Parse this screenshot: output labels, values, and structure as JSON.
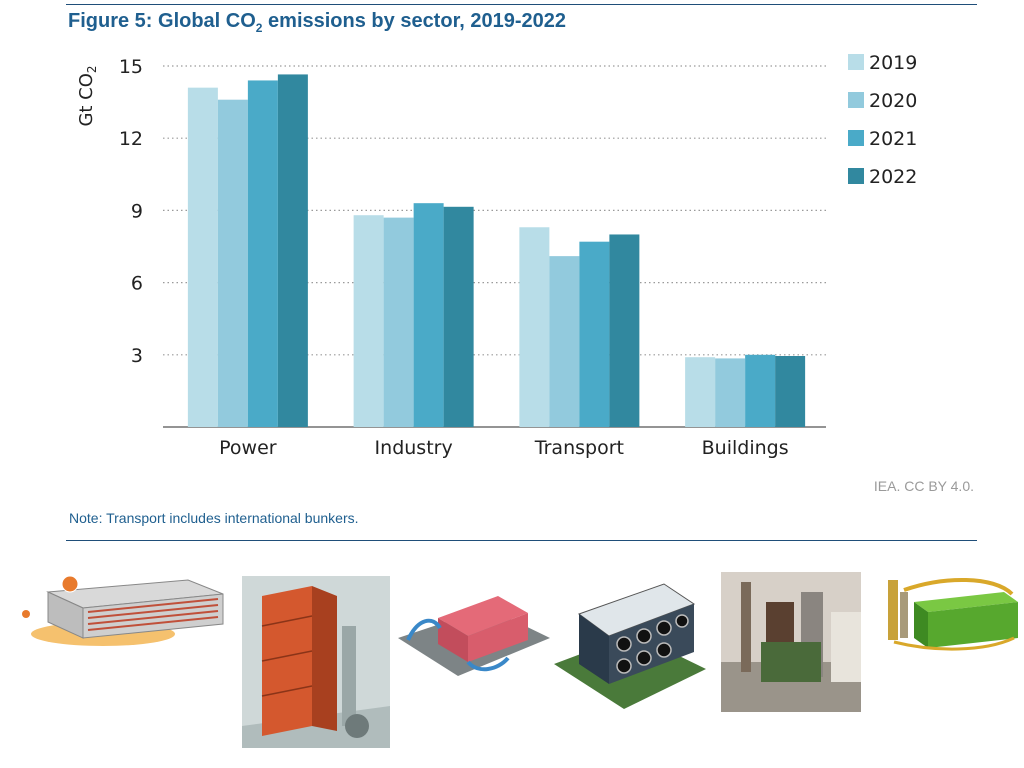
{
  "figure": {
    "title_prefix": "Figure 5: Global CO",
    "title_sub": "2",
    "title_suffix": " emissions by sector, 2019-2022",
    "credit": "IEA. CC BY 4.0.",
    "note": "Note: Transport includes international bunkers."
  },
  "colors": {
    "rule": "#1f4e79",
    "title": "#1f5f8f",
    "gridline": "#9a9a9a",
    "axis": "#555555"
  },
  "chart_data": {
    "type": "bar",
    "title": "Figure 5: Global CO2 emissions by sector, 2019-2022",
    "ylabel": "Gt CO2",
    "xlabel": "",
    "ylim": [
      0,
      15
    ],
    "yticks": [
      3,
      6,
      9,
      12,
      15
    ],
    "grid": true,
    "legend_position": "right",
    "categories": [
      "Power",
      "Industry",
      "Transport",
      "Buildings"
    ],
    "series": [
      {
        "name": "2019",
        "color": "#b8dde8",
        "values": [
          14.1,
          8.8,
          8.3,
          2.9
        ]
      },
      {
        "name": "2020",
        "color": "#92cadd",
        "values": [
          13.6,
          8.7,
          7.1,
          2.85
        ]
      },
      {
        "name": "2021",
        "color": "#4aaac8",
        "values": [
          14.4,
          9.3,
          7.7,
          3.0
        ]
      },
      {
        "name": "2022",
        "color": "#31889f",
        "values": [
          14.65,
          9.15,
          8.0,
          2.95
        ]
      }
    ]
  },
  "gallery": [
    {
      "name": "air-cooled-heat-exchanger-render",
      "icon": "heat-exchanger-icon"
    },
    {
      "name": "vertical-coil-module-render",
      "icon": "coil-module-icon"
    },
    {
      "name": "containerized-unit-render",
      "icon": "container-unit-icon"
    },
    {
      "name": "fan-array-plant-render",
      "icon": "fan-array-icon"
    },
    {
      "name": "industrial-plant-photo",
      "icon": "plant-icon"
    },
    {
      "name": "green-module-render",
      "icon": "green-module-icon"
    }
  ]
}
